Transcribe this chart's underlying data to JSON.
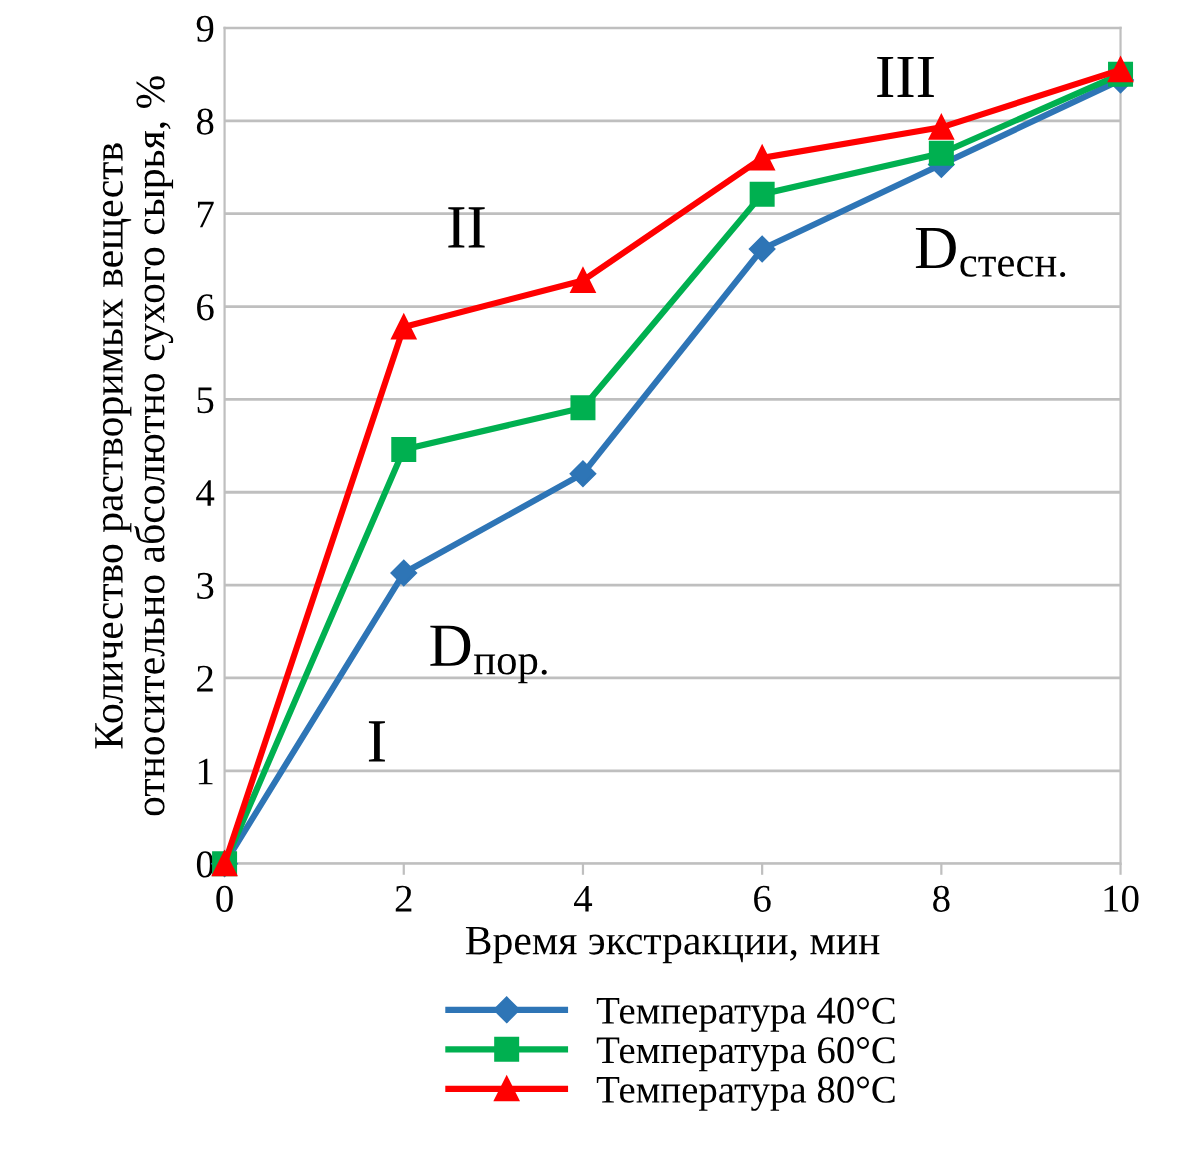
{
  "chart_data": {
    "type": "line",
    "xlabel": "Время экстракции, мин",
    "ylabel": "Количество растворимых веществ\nотносительно абсолютно сухого сырья, %",
    "x": [
      0,
      2,
      4,
      6,
      8,
      10
    ],
    "series": [
      {
        "name": "Температура 40°C",
        "color": "#2e75b6",
        "marker": "diamond",
        "values": [
          0,
          3.13,
          4.2,
          6.62,
          7.53,
          8.44
        ]
      },
      {
        "name": "Температура 60°C",
        "color": "#00b050",
        "marker": "square",
        "values": [
          0,
          4.46,
          4.91,
          7.21,
          7.65,
          8.5
        ]
      },
      {
        "name": "Температура 80°C",
        "color": "#ff0000",
        "marker": "triangle",
        "values": [
          0,
          5.78,
          6.28,
          7.6,
          7.93,
          8.55
        ]
      }
    ],
    "xlim": [
      0,
      10
    ],
    "xticks": [
      0,
      2,
      4,
      6,
      8,
      10
    ],
    "ylim": [
      0,
      9
    ],
    "yticks": [
      0,
      1,
      2,
      3,
      4,
      5,
      6,
      7,
      8,
      9
    ],
    "grid": "y",
    "legend": "bottom",
    "line_style": "solid",
    "annotations": [
      "I",
      "II",
      "III",
      "D$_{пор.}$",
      "D$_{стесн.}$"
    ]
  }
}
